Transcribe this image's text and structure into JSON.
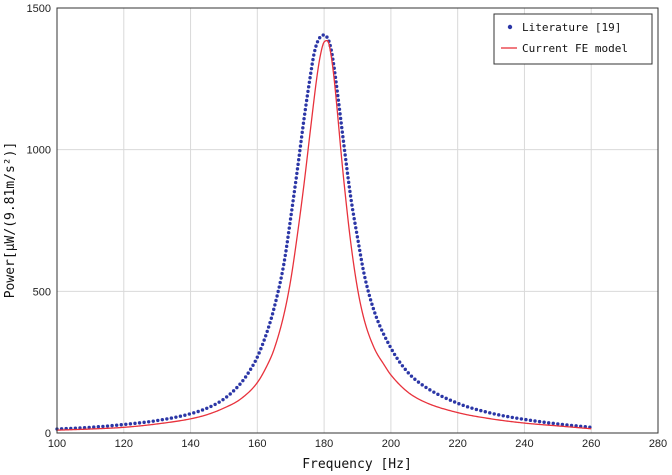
{
  "chart_data": {
    "type": "line",
    "title": "",
    "xlabel": "Frequency [Hz]",
    "ylabel": "Power[μW/(9.81m/s²)]",
    "xlim": [
      100,
      280
    ],
    "ylim": [
      0,
      1500
    ],
    "x_ticks": [
      100,
      120,
      140,
      160,
      180,
      200,
      220,
      240,
      260,
      280
    ],
    "y_ticks": [
      0,
      500,
      1000,
      1500
    ],
    "grid": true,
    "legend_position": "top-right",
    "series": [
      {
        "name": "Literature [19]",
        "style": "dots",
        "color": "#2b36a6",
        "x": [
          100,
          110,
          120,
          130,
          140,
          145,
          150,
          155,
          158,
          160,
          163,
          165,
          168,
          170,
          172,
          174,
          176,
          177,
          178,
          179,
          180,
          181,
          182,
          183,
          184,
          186,
          188,
          190,
          192,
          195,
          200,
          205,
          210,
          220,
          230,
          240,
          250,
          260
        ],
        "y": [
          14,
          20,
          30,
          44,
          68,
          88,
          120,
          175,
          225,
          268,
          360,
          440,
          600,
          760,
          930,
          1110,
          1270,
          1340,
          1380,
          1400,
          1405,
          1395,
          1360,
          1290,
          1200,
          1010,
          830,
          690,
          560,
          430,
          300,
          215,
          165,
          105,
          70,
          48,
          32,
          20
        ]
      },
      {
        "name": "Current FE model",
        "style": "line",
        "color": "#e8323c",
        "x": [
          100,
          110,
          120,
          130,
          140,
          145,
          150,
          155,
          160,
          163,
          165,
          168,
          170,
          172,
          174,
          176,
          178,
          179,
          180,
          181,
          182,
          183,
          184,
          185,
          186,
          188,
          190,
          192,
          195,
          198,
          200,
          205,
          210,
          220,
          230,
          240,
          250,
          260
        ],
        "y": [
          10,
          14,
          20,
          32,
          50,
          65,
          88,
          120,
          178,
          240,
          295,
          420,
          540,
          700,
          880,
          1080,
          1270,
          1340,
          1380,
          1385,
          1340,
          1250,
          1130,
          1000,
          880,
          670,
          510,
          400,
          300,
          240,
          205,
          145,
          110,
          72,
          50,
          35,
          25,
          15
        ]
      }
    ]
  }
}
